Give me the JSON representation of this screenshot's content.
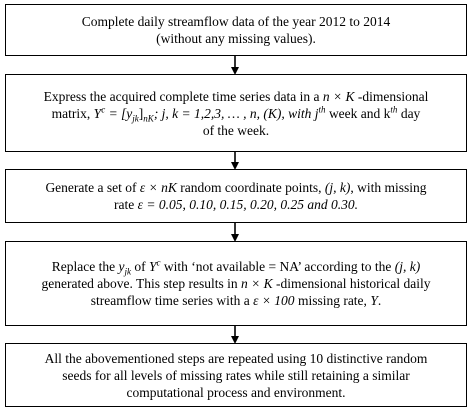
{
  "steps": [
    {
      "lines": [
        "Complete daily streamflow data of the year 2012 to 2014",
        "(without any missing values)."
      ]
    },
    {
      "l1_pre": "Express the acquired complete time series data in a ",
      "l1_math": "n × K",
      "l1_post": " -dimensional",
      "l2_pre": "matrix, ",
      "l2_Y": "Y",
      "l2_Ysup": "c",
      "l2_eq": " = [y",
      "l2_sub1": "jk",
      "l2_br": "]",
      "l2_sub2": "nK",
      "l2_post": "; j, k = 1,2,3, … , n, (K), with j",
      "l2_sup_th1": "th",
      "l2_mid": " week and k",
      "l2_sup_th2": "th",
      "l2_end": " day",
      "l3": "of the week."
    },
    {
      "l1_pre": "Generate a set of ",
      "l1_math": "ε × nK",
      "l1_post": " random coordinate points, ",
      "l1_coord": "(j, k)",
      "l1_end": ", with missing",
      "l2_pre": "rate ",
      "l2_math": "ε = 0.05, 0.10, 0.15, 0.20, 0.25 and 0.30."
    },
    {
      "l1_pre": "Replace the ",
      "l1_y": "y",
      "l1_sub": "jk",
      "l1_of": " of ",
      "l1_Y": "Y",
      "l1_sup": "c",
      "l1_post": " with ‘not available = NA’ according to the ",
      "l1_coord": "(j, k)",
      "l2_pre": "generated above. This step results in ",
      "l2_math": "n × K",
      "l2_post": " -dimensional historical daily",
      "l3_pre": "streamflow time series with a ",
      "l3_math": "ε × 100",
      "l3_post": " missing rate, ",
      "l3_Y": "Y",
      "l3_end": "."
    },
    {
      "lines": [
        "All the abovementioned steps are repeated using 10 distinctive random",
        "seeds for all levels of missing rates while still retaining a similar",
        "computational process and environment."
      ]
    }
  ]
}
